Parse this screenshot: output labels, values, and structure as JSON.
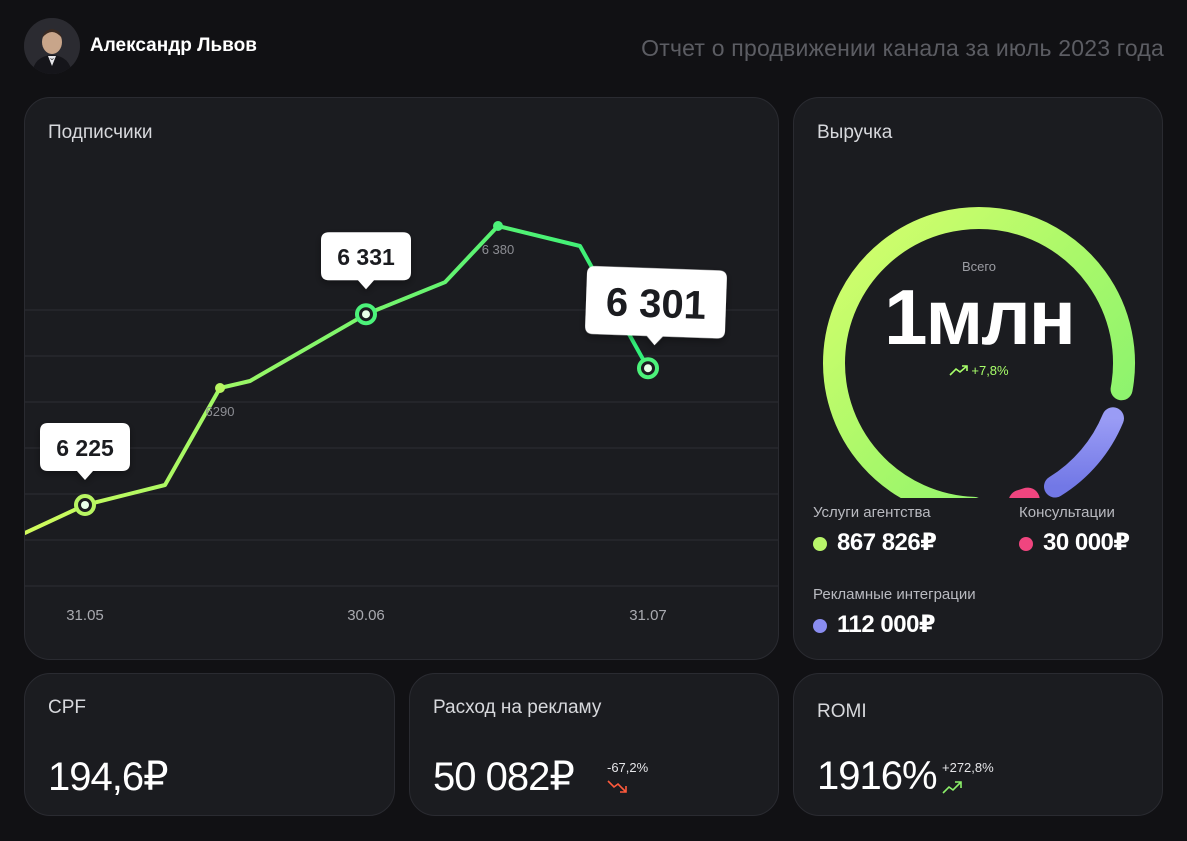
{
  "header": {
    "user_name": "Александр Львов",
    "report_title": "Отчет о продвижении канала за июль 2023 года"
  },
  "subscribers": {
    "title": "Подписчики",
    "chart_data": {
      "type": "line",
      "title": "Подписчики",
      "xlabel": "",
      "ylabel": "",
      "x_ticks": [
        "31.05",
        "30.06",
        "31.07"
      ],
      "points": [
        {
          "value": 6225,
          "label": "6 225",
          "style": "callout",
          "tick": "31.05"
        },
        {
          "value": 6290,
          "label": "6290",
          "style": "minor"
        },
        {
          "value": 6331,
          "label": "6 331",
          "style": "callout",
          "tick": "30.06"
        },
        {
          "value": 6380,
          "label": "6 380",
          "style": "minor"
        },
        {
          "value": 6301,
          "label": "6 301",
          "style": "callout-large",
          "tick": "31.07"
        }
      ],
      "grid": true,
      "colors": {
        "start": "#cdfa5a",
        "end": "#2ff07a"
      }
    }
  },
  "revenue": {
    "title": "Выручка",
    "total_label": "Всего",
    "total_value": "1млн",
    "growth": "+7,8%",
    "chart_data": {
      "type": "pie",
      "style": "donut",
      "slices": [
        {
          "label": "Услуги агентства",
          "value": 867826,
          "color": "#b8f56a"
        },
        {
          "label": "Рекламные интеграции",
          "value": 112000,
          "color": "#8a8df0"
        },
        {
          "label": "Консультации",
          "value": 30000,
          "color": "#f0457f"
        }
      ]
    },
    "legend": [
      {
        "label": "Услуги агентства",
        "value": "867 826₽",
        "color": "#b8f56a"
      },
      {
        "label": "Консультации",
        "value": "30 000₽",
        "color": "#f0457f"
      },
      {
        "label": "Рекламные интеграции",
        "value": "112 000₽",
        "color": "#8a8df0"
      }
    ]
  },
  "cpf": {
    "title": "CPF",
    "value": "194,6₽"
  },
  "ad_spend": {
    "title": "Расход на рекламу",
    "value": "50 082₽",
    "delta": "-67,2%",
    "trend": "down",
    "trend_color": "#ff5a3c"
  },
  "romi": {
    "title": "ROMI",
    "value": "1916%",
    "delta": "+272,8%",
    "trend": "up",
    "trend_color": "#8cf06a"
  }
}
